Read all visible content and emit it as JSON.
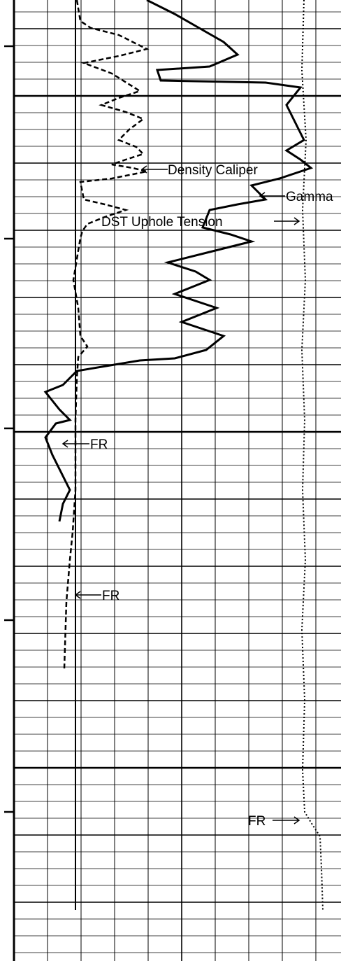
{
  "labels": {
    "density_caliper": "Density Caliper",
    "gamma": "Gamma",
    "dst_uphole_tension": "DST Uphole Tension",
    "fr_1": "FR",
    "fr_2": "FR",
    "fr_3": "FR"
  }
}
